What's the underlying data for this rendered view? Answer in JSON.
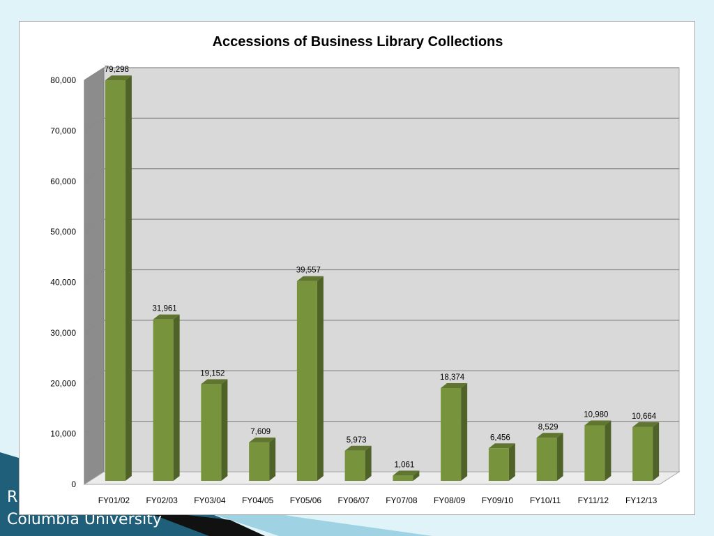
{
  "footer": {
    "line1": "R",
    "line2": "Columbia University"
  },
  "colors": {
    "background": "#dff3f8",
    "bar_front": "#77933c",
    "bar_side": "#4f6228",
    "bar_top": "#5f7530",
    "plot_wall": "#d9d9d9",
    "side_wall": "#8c8c8c",
    "footer_band": "#1f5f7a"
  },
  "chart_data": {
    "type": "bar",
    "style": "3d-column",
    "title": "Accessions of Business Library Collections",
    "xlabel": "",
    "ylabel": "",
    "ylim": [
      0,
      80000
    ],
    "yticks": [
      "0",
      "10,000",
      "20,000",
      "30,000",
      "40,000",
      "50,000",
      "60,000",
      "70,000",
      "80,000"
    ],
    "grid": true,
    "legend": "none",
    "categories": [
      "FY01/02",
      "FY02/03",
      "FY03/04",
      "FY04/05",
      "FY05/06",
      "FY06/07",
      "FY07/08",
      "FY08/09",
      "FY09/10",
      "FY10/11",
      "FY11/12",
      "FY12/13"
    ],
    "values": [
      79298,
      31961,
      19152,
      7609,
      39557,
      5973,
      1061,
      18374,
      6456,
      8529,
      10980,
      10664
    ],
    "data_labels": [
      "79,298",
      "31,961",
      "19,152",
      "7,609",
      "39,557",
      "5,973",
      "1,061",
      "18,374",
      "6,456",
      "8,529",
      "10,980",
      "10,664"
    ]
  }
}
